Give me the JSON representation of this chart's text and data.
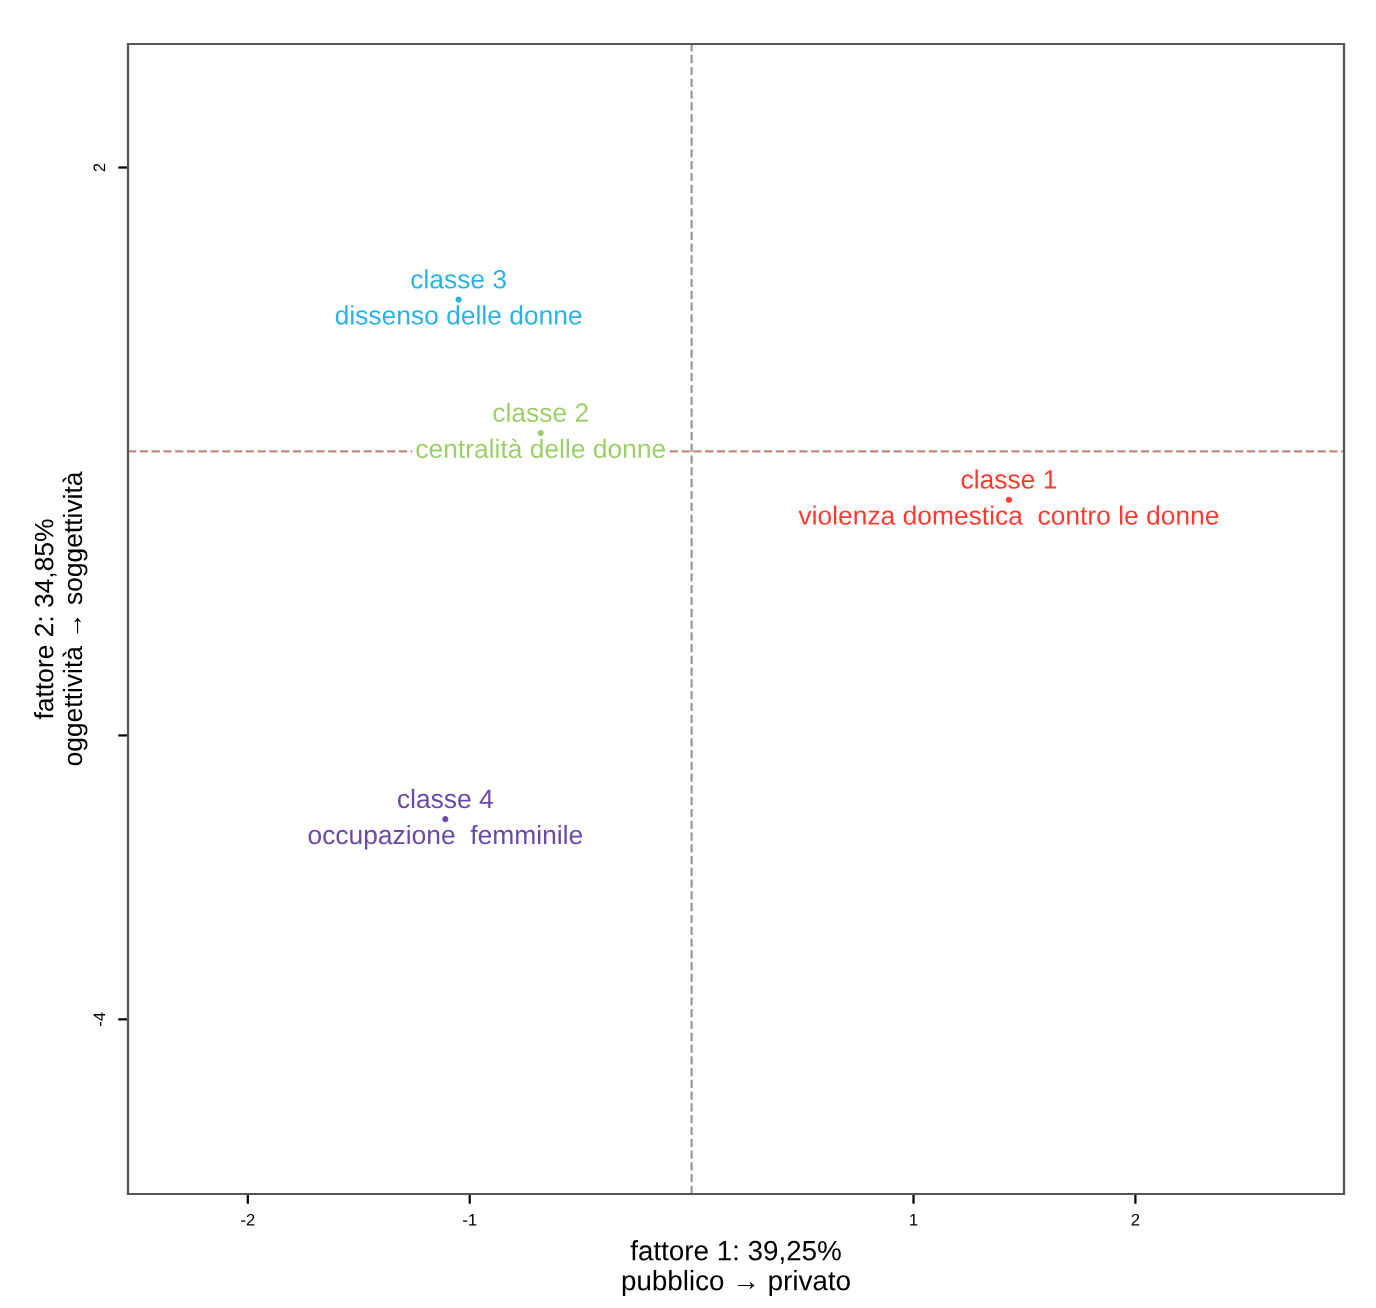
{
  "chart_data": {
    "type": "scatter",
    "xlabel": "fattore 1: 39,25%\npubblico → privato",
    "ylabel": "fattore 2: 34,85%\noggettività → soggettività",
    "series": [
      {
        "name": "classe 1\nviolenza domestica  contro le donne",
        "color": "#ff3b2f",
        "x": [
          1.43
        ],
        "values": [
          -0.34
        ]
      },
      {
        "name": "classe 2\ncentralità delle donne",
        "color": "#9ccf6a",
        "x": [
          -0.68
        ],
        "values": [
          0.13
        ]
      },
      {
        "name": "classe 3\ndissenso delle donne",
        "color": "#29b2e6",
        "x": [
          -1.05
        ],
        "values": [
          1.07
        ]
      },
      {
        "name": "classe 4\noccupazione  femminile",
        "color": "#6a4aa8",
        "x": [
          -1.11
        ],
        "values": [
          -2.59
        ]
      }
    ],
    "xlim": [
      -2.54,
      2.94
    ],
    "xticks": [
      -2,
      -1,
      1,
      2
    ],
    "ylim": [
      -5.23,
      2.87
    ],
    "yticks": [
      2,
      {
        "value": -2,
        "label": null
      },
      -4
    ],
    "ref_lines": [
      {
        "axis": "x",
        "value": 0,
        "color": "#999999",
        "line_style": "dashed"
      },
      {
        "axis": "y",
        "value": 0,
        "color": "#c08a7a",
        "line_style": "dashed"
      }
    ],
    "grid": false,
    "legend": false
  }
}
